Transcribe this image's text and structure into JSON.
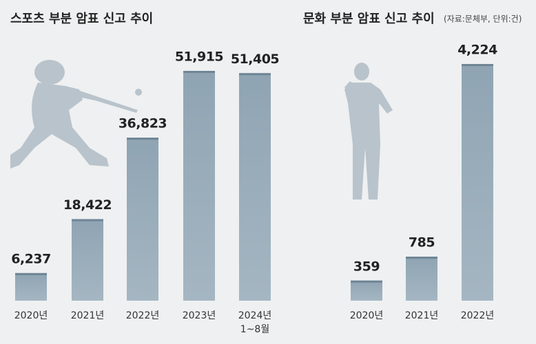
{
  "source": "(자료:문체부, 단위:건)",
  "chart_data": [
    {
      "type": "bar",
      "title": "스포츠 부분 암표 신고 추이",
      "categories": [
        "2020년",
        "2021년",
        "2022년",
        "2023년",
        "2024년\n1~8월"
      ],
      "values": [
        6237,
        18422,
        36823,
        51915,
        51405
      ],
      "value_labels": [
        "6,237",
        "18,422",
        "36,823",
        "51,915",
        "51,405"
      ],
      "color": "#8fa4b3"
    },
    {
      "type": "bar",
      "title": "문화 부분 암표 신고 추이",
      "categories": [
        "2020년",
        "2021년",
        "2022년"
      ],
      "values": [
        359,
        785,
        4224
      ],
      "value_labels": [
        "359",
        "785",
        "4,224"
      ],
      "color": "#8fa4b3"
    }
  ]
}
